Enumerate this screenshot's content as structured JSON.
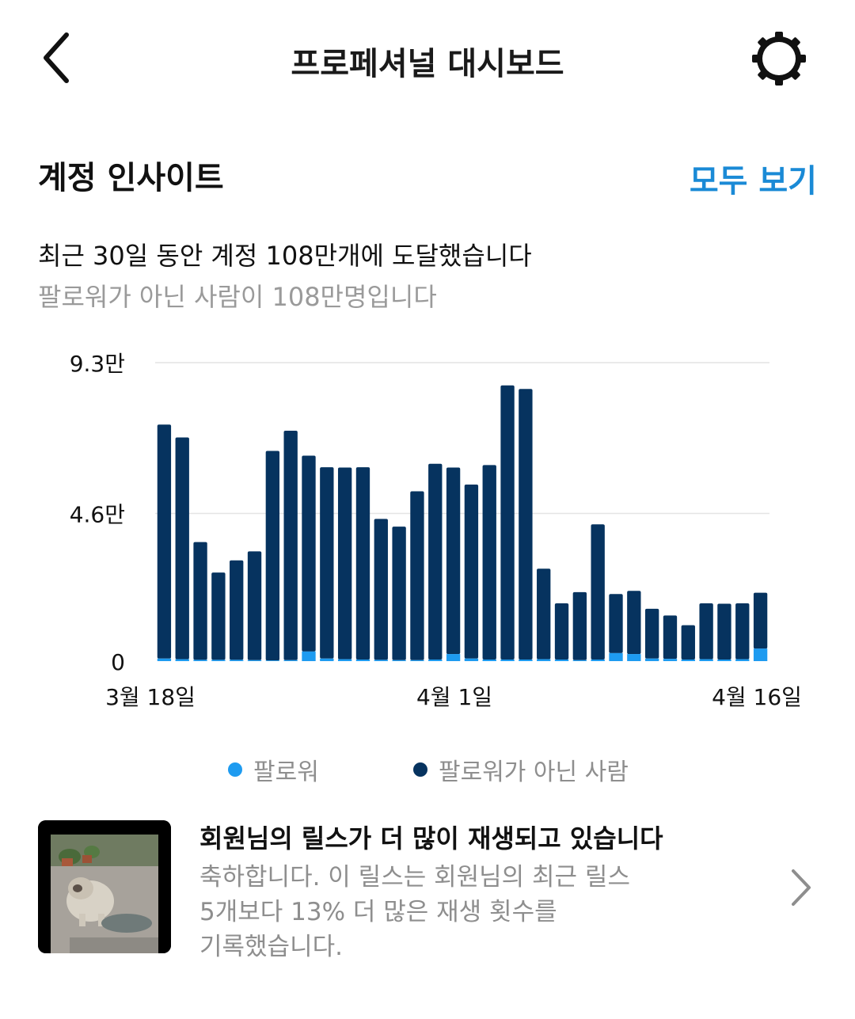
{
  "header": {
    "title": "프로페셔널 대시보드"
  },
  "insights": {
    "title": "계정 인사이트",
    "see_all": "모두 보기",
    "headline": "최근 30일 동안 계정 108만개에 도달했습니다",
    "subline": "팔로워가 아닌 사람이 108만명입니다"
  },
  "chart_data": {
    "type": "bar",
    "stacked": true,
    "yticks": [
      "0",
      "4.6만",
      "9.3만"
    ],
    "ylim": [
      0,
      93000
    ],
    "xticks": [
      "3월 18일",
      "4월 1일",
      "4월 16일"
    ],
    "series": [
      {
        "name": "팔로워",
        "color": "#1e9bf0",
        "values": [
          800,
          600,
          400,
          400,
          400,
          300,
          200,
          300,
          3000,
          800,
          600,
          500,
          400,
          300,
          300,
          500,
          2200,
          800,
          500,
          500,
          500,
          600,
          500,
          300,
          500,
          2500,
          2200,
          800,
          700,
          500,
          600,
          500,
          600,
          3900
        ]
      },
      {
        "name": "팔로워가 아닌 사람",
        "color": "#06335f",
        "values": [
          72900,
          69100,
          36700,
          27200,
          31000,
          33900,
          65300,
          71500,
          61000,
          59600,
          59700,
          59900,
          43900,
          41600,
          52600,
          61000,
          58100,
          54200,
          60600,
          85400,
          84300,
          28200,
          17500,
          21200,
          42100,
          18400,
          19700,
          15500,
          13500,
          10700,
          17400,
          17400,
          17400,
          17400
        ]
      }
    ]
  },
  "legend": [
    {
      "label": "팔로워",
      "color": "#1e9bf0"
    },
    {
      "label": "팔로워가 아닌 사람",
      "color": "#06335f"
    }
  ],
  "reel_card": {
    "title": "회원님의 릴스가 더 많이 재생되고 있습니다",
    "body_line1": "축하합니다. 이 릴스는 회원님의 최근 릴스",
    "body_line2": "5개보다 13% 더 많은 재생 횟수를",
    "body_line3": "기록했습니다."
  },
  "icons": {
    "back": "chevron-left-icon",
    "settings": "gear-icon",
    "next": "chevron-right-icon"
  }
}
